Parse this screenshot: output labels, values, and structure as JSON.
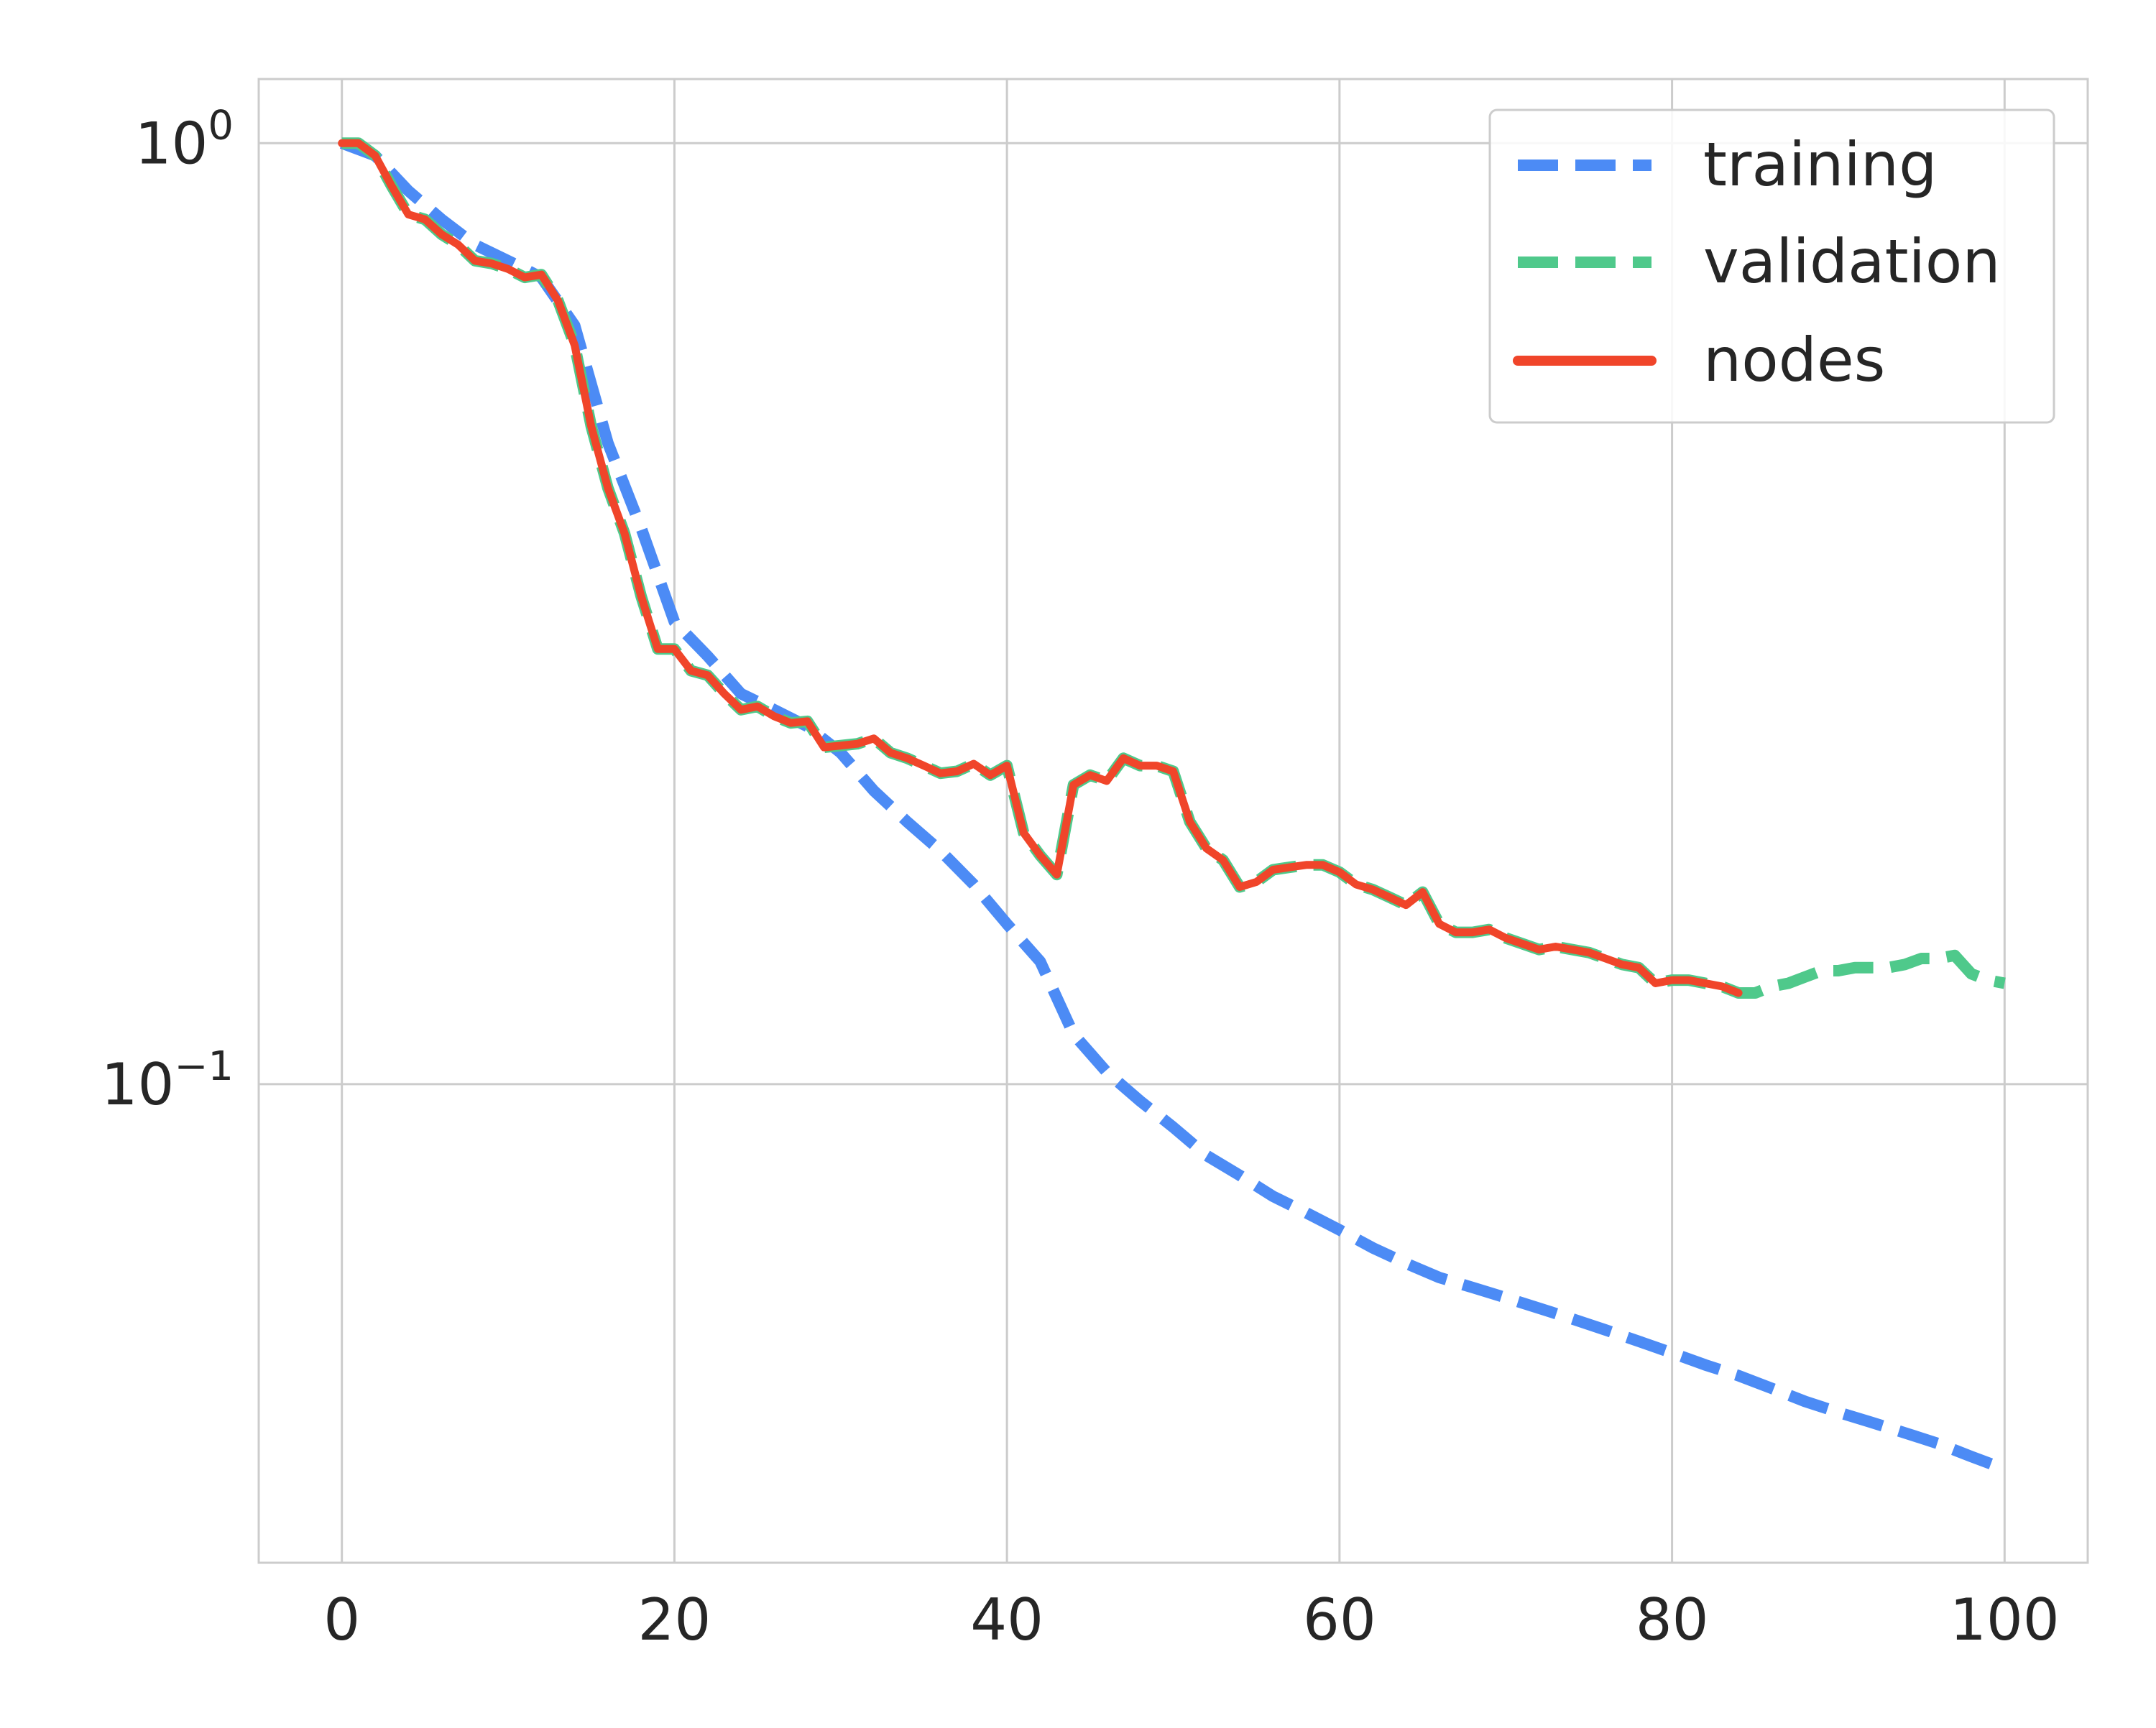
{
  "chart_data": {
    "type": "line",
    "title": "",
    "xlabel": "",
    "ylabel": "",
    "xlim": [
      -5,
      105
    ],
    "ylim": [
      0.031,
      1.17
    ],
    "yscale": "log",
    "grid": true,
    "legend_position": "top-right",
    "x_ticks": [
      {
        "value": 0,
        "label": "0"
      },
      {
        "value": 20,
        "label": "20"
      },
      {
        "value": 40,
        "label": "40"
      },
      {
        "value": 60,
        "label": "60"
      },
      {
        "value": 80,
        "label": "80"
      },
      {
        "value": 100,
        "label": "100"
      }
    ],
    "y_ticks": [
      {
        "value": 1,
        "base": "10",
        "exp": "0"
      },
      {
        "value": 0.1,
        "base": "10",
        "exp": "−1"
      }
    ],
    "series": [
      {
        "name": "training",
        "color": "#4c8bf5",
        "dash": "dashed",
        "x": [
          0,
          2,
          4,
          6,
          8,
          10,
          12,
          14,
          16,
          18,
          20,
          22,
          24,
          26,
          28,
          30,
          32,
          34,
          36,
          38,
          40,
          42,
          44,
          46,
          48,
          50,
          52,
          54,
          56,
          58,
          60,
          62,
          64,
          66,
          68,
          70,
          72,
          74,
          76,
          78,
          80,
          82,
          84,
          86,
          88,
          90,
          92,
          94,
          96,
          98,
          100
        ],
        "y": [
          1.0,
          0.97,
          0.89,
          0.83,
          0.78,
          0.75,
          0.72,
          0.64,
          0.48,
          0.39,
          0.31,
          0.285,
          0.26,
          0.25,
          0.24,
          0.225,
          0.205,
          0.19,
          0.177,
          0.163,
          0.148,
          0.135,
          0.113,
          0.103,
          0.096,
          0.09,
          0.084,
          0.08,
          0.076,
          0.073,
          0.07,
          0.067,
          0.0645,
          0.0623,
          0.0608,
          0.0593,
          0.0578,
          0.0563,
          0.0548,
          0.0533,
          0.0518,
          0.0503,
          0.049,
          0.0475,
          0.046,
          0.0448,
          0.0437,
          0.0426,
          0.0415,
          0.0402,
          0.039
        ]
      },
      {
        "name": "validation",
        "color": "#4fc98b",
        "dash": "dashed",
        "x": [
          0,
          1,
          2,
          3,
          4,
          5,
          6,
          7,
          8,
          9,
          10,
          11,
          12,
          13,
          14,
          15,
          16,
          17,
          18,
          19,
          20,
          21,
          22,
          23,
          24,
          25,
          26,
          27,
          28,
          29,
          30,
          31,
          32,
          33,
          34,
          35,
          36,
          37,
          38,
          39,
          40,
          41,
          42,
          43,
          44,
          45,
          46,
          47,
          48,
          49,
          50,
          51,
          52,
          53,
          54,
          55,
          56,
          57,
          58,
          59,
          60,
          61,
          62,
          63,
          64,
          65,
          66,
          67,
          68,
          69,
          70,
          71,
          72,
          73,
          74,
          75,
          76,
          77,
          78,
          79,
          80,
          81,
          82,
          83,
          84,
          85,
          86,
          87,
          88,
          89,
          90,
          91,
          92,
          93,
          94,
          95,
          96,
          97,
          98,
          99,
          100
        ],
        "y": [
          1.0,
          1.0,
          0.97,
          0.9,
          0.84,
          0.83,
          0.8,
          0.78,
          0.75,
          0.745,
          0.735,
          0.72,
          0.725,
          0.68,
          0.61,
          0.5,
          0.43,
          0.385,
          0.33,
          0.29,
          0.29,
          0.275,
          0.272,
          0.26,
          0.25,
          0.252,
          0.246,
          0.242,
          0.243,
          0.228,
          0.229,
          0.23,
          0.233,
          0.225,
          0.222,
          0.218,
          0.214,
          0.215,
          0.219,
          0.213,
          0.218,
          0.185,
          0.175,
          0.167,
          0.208,
          0.213,
          0.21,
          0.222,
          0.218,
          0.218,
          0.215,
          0.19,
          0.178,
          0.173,
          0.162,
          0.164,
          0.169,
          0.17,
          0.171,
          0.171,
          0.168,
          0.163,
          0.161,
          0.158,
          0.155,
          0.16,
          0.148,
          0.145,
          0.145,
          0.146,
          0.143,
          0.141,
          0.139,
          0.14,
          0.139,
          0.138,
          0.136,
          0.134,
          0.133,
          0.128,
          0.129,
          0.129,
          0.128,
          0.127,
          0.125,
          0.125,
          0.127,
          0.128,
          0.13,
          0.132,
          0.132,
          0.133,
          0.133,
          0.133,
          0.134,
          0.136,
          0.136,
          0.137,
          0.131,
          0.129,
          0.128
        ]
      },
      {
        "name": "nodes",
        "color": "#f0452a",
        "dash": "solid",
        "x": [
          0,
          1,
          2,
          3,
          4,
          5,
          6,
          7,
          8,
          9,
          10,
          11,
          12,
          13,
          14,
          15,
          16,
          17,
          18,
          19,
          20,
          21,
          22,
          23,
          24,
          25,
          26,
          27,
          28,
          29,
          30,
          31,
          32,
          33,
          34,
          35,
          36,
          37,
          38,
          39,
          40,
          41,
          42,
          43,
          44,
          45,
          46,
          47,
          48,
          49,
          50,
          51,
          52,
          53,
          54,
          55,
          56,
          57,
          58,
          59,
          60,
          61,
          62,
          63,
          64,
          65,
          66,
          67,
          68,
          69,
          70,
          71,
          72,
          73,
          74,
          75,
          76,
          77,
          78,
          79,
          80,
          81,
          82,
          83,
          84
        ],
        "y": [
          1.0,
          1.0,
          0.97,
          0.9,
          0.84,
          0.83,
          0.8,
          0.78,
          0.75,
          0.745,
          0.735,
          0.72,
          0.725,
          0.68,
          0.61,
          0.5,
          0.43,
          0.385,
          0.33,
          0.29,
          0.29,
          0.275,
          0.272,
          0.26,
          0.25,
          0.252,
          0.246,
          0.242,
          0.243,
          0.228,
          0.229,
          0.23,
          0.233,
          0.225,
          0.222,
          0.218,
          0.214,
          0.215,
          0.219,
          0.213,
          0.218,
          0.185,
          0.175,
          0.167,
          0.208,
          0.213,
          0.21,
          0.222,
          0.218,
          0.218,
          0.215,
          0.19,
          0.178,
          0.173,
          0.162,
          0.164,
          0.169,
          0.17,
          0.171,
          0.171,
          0.168,
          0.163,
          0.161,
          0.158,
          0.155,
          0.16,
          0.148,
          0.145,
          0.145,
          0.146,
          0.143,
          0.141,
          0.139,
          0.14,
          0.139,
          0.138,
          0.136,
          0.134,
          0.133,
          0.128,
          0.129,
          0.129,
          0.128,
          0.127,
          0.125
        ]
      }
    ]
  }
}
